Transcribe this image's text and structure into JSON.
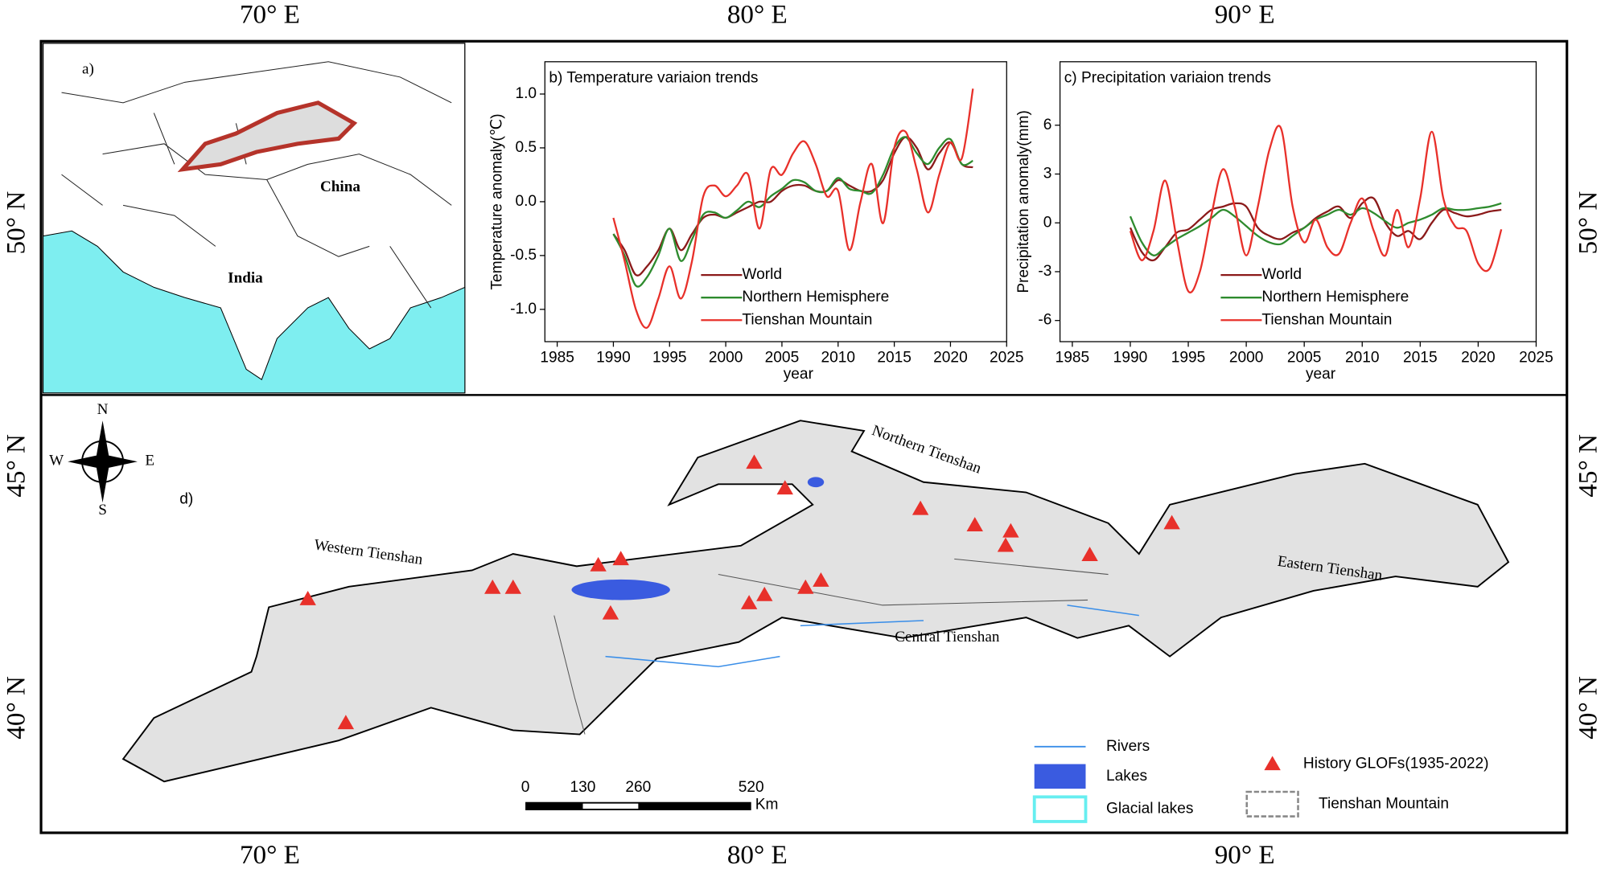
{
  "frame": {
    "longitudes": [
      "70° E",
      "80° E",
      "90° E"
    ],
    "latitudes": [
      "50° N",
      "45° N",
      "40° N"
    ]
  },
  "inset_map": {
    "label": "a)",
    "countries": [
      "China",
      "India"
    ]
  },
  "chart_data": [
    {
      "type": "line",
      "title": "b) Temperature variaion trends",
      "x_label": "year",
      "y_label": "Temperature anomaly(℃)",
      "x": [
        1990,
        1991,
        1992,
        1993,
        1994,
        1995,
        1996,
        1997,
        1998,
        1999,
        2000,
        2001,
        2002,
        2003,
        2004,
        2005,
        2006,
        2007,
        2008,
        2009,
        2010,
        2011,
        2012,
        2013,
        2014,
        2015,
        2016,
        2017,
        2018,
        2019,
        2020,
        2021,
        2022
      ],
      "xlim": [
        1985,
        2025
      ],
      "xticks": [
        1985,
        1990,
        1995,
        2000,
        2005,
        2010,
        2015,
        2020,
        2025
      ],
      "ylim": [
        -1.3,
        1.3
      ],
      "yticks": [
        {
          "value": -1,
          "label": "-1.0"
        },
        -0.5,
        {
          "value": 0,
          "label": "0.0"
        },
        0.5,
        {
          "value": 1,
          "label": "1.0"
        }
      ],
      "legend": "lower right",
      "series": [
        {
          "name": "World",
          "color": "#8b1a1a",
          "values": [
            -0.3,
            -0.45,
            -0.68,
            -0.6,
            -0.45,
            -0.25,
            -0.45,
            -0.3,
            -0.15,
            -0.12,
            -0.15,
            -0.1,
            -0.05,
            0,
            0,
            0.1,
            0.15,
            0.15,
            0.1,
            0.1,
            0.2,
            0.15,
            0.1,
            0.1,
            0.2,
            0.45,
            0.6,
            0.5,
            0.3,
            0.45,
            0.55,
            0.35,
            0.32
          ]
        },
        {
          "name": "Northern Hemisphere",
          "color": "#2e8b2e",
          "values": [
            -0.3,
            -0.5,
            -0.78,
            -0.7,
            -0.5,
            -0.25,
            -0.55,
            -0.35,
            -0.12,
            -0.1,
            -0.15,
            -0.08,
            0,
            -0.05,
            0.05,
            0.12,
            0.2,
            0.18,
            0.1,
            0.1,
            0.22,
            0.12,
            0.1,
            0.08,
            0.25,
            0.5,
            0.6,
            0.45,
            0.35,
            0.5,
            0.58,
            0.35,
            0.38
          ]
        },
        {
          "name": "Tienshan Mountain",
          "color": "#e8302a",
          "values": [
            -0.15,
            -0.55,
            -1,
            -1.17,
            -0.9,
            -0.6,
            -0.9,
            -0.55,
            0.05,
            0.15,
            0.05,
            0.15,
            0.25,
            -0.25,
            0.3,
            0.25,
            0.45,
            0.56,
            0.35,
            0.05,
            0.1,
            -0.45,
            0,
            0.35,
            -0.2,
            0.5,
            0.65,
            0.3,
            -0.1,
            0.25,
            0.55,
            0.4,
            1.05
          ]
        }
      ]
    },
    {
      "type": "line",
      "title": "c) Precipitation variaion trends",
      "x_label": "year",
      "y_label": "Precipitation anomaly(mm)",
      "x": [
        1990,
        1991,
        1992,
        1993,
        1994,
        1995,
        1996,
        1997,
        1998,
        1999,
        2000,
        2001,
        2002,
        2003,
        2004,
        2005,
        2006,
        2007,
        2008,
        2009,
        2010,
        2011,
        2012,
        2013,
        2014,
        2015,
        2016,
        2017,
        2018,
        2019,
        2020,
        2021,
        2022
      ],
      "xlim": [
        1985,
        2025
      ],
      "xticks": [
        1985,
        1990,
        1995,
        2000,
        2005,
        2010,
        2015,
        2020,
        2025
      ],
      "ylim": [
        -7.3,
        9.9
      ],
      "yticks": [
        -6,
        -3,
        0,
        3,
        6
      ],
      "legend": "lower right",
      "series": [
        {
          "name": "World",
          "color": "#8b1a1a",
          "values": [
            -0.3,
            -1.8,
            -2.3,
            -1.5,
            -0.6,
            -0.4,
            0.2,
            0.8,
            1,
            1.2,
            1,
            -0.3,
            -0.8,
            -1,
            -0.6,
            -0.3,
            0.3,
            0.7,
            1,
            0.3,
            1.2,
            1.5,
            0,
            -0.8,
            -0.5,
            -1,
            0,
            0.8,
            0.6,
            0.4,
            0.5,
            0.7,
            0.8
          ]
        },
        {
          "name": "Northern Hemisphere",
          "color": "#2e8b2e",
          "values": [
            0.4,
            -1.2,
            -2,
            -1.5,
            -1,
            -0.6,
            -0.2,
            0.3,
            0.8,
            0.4,
            -0.2,
            -0.8,
            -1.2,
            -1.3,
            -0.8,
            -0.3,
            0.2,
            0.5,
            0.8,
            0.5,
            0.9,
            0.6,
            0.1,
            -0.3,
            0,
            0.2,
            0.5,
            0.9,
            0.8,
            0.8,
            0.9,
            1,
            1.2
          ]
        },
        {
          "name": "Tienshan Mountain",
          "color": "#e8302a",
          "values": [
            -0.5,
            -2.3,
            -0.5,
            2.6,
            -1,
            -4.2,
            -3,
            0.5,
            3.3,
            1,
            -2,
            1,
            4.5,
            5.8,
            1,
            -1.2,
            0.2,
            -1.5,
            -1.9,
            0,
            1.5,
            -0.5,
            -2,
            0.8,
            -1.5,
            1.5,
            5.6,
            1.5,
            -0.2,
            -0.5,
            -2.5,
            -2.8,
            -0.4
          ]
        }
      ]
    }
  ],
  "main_map": {
    "label": "d)",
    "compass": {
      "north": "N",
      "south": "S",
      "west": "W",
      "east": "E"
    },
    "regions": {
      "western": "Western Tienshan",
      "northern": "Northern Tienshan",
      "central": "Central Tienshan",
      "eastern": "Eastern Tienshan"
    },
    "scale_bar": {
      "ticks": [
        "0",
        "130",
        "260",
        "520"
      ],
      "unit": "Km"
    },
    "legend": {
      "rivers": "Rivers",
      "lakes": "Lakes",
      "glacial_lakes": "Glacial lakes",
      "glofs": "History GLOFs(1935-2022)",
      "mountain": "Tienshan Mountain"
    }
  }
}
